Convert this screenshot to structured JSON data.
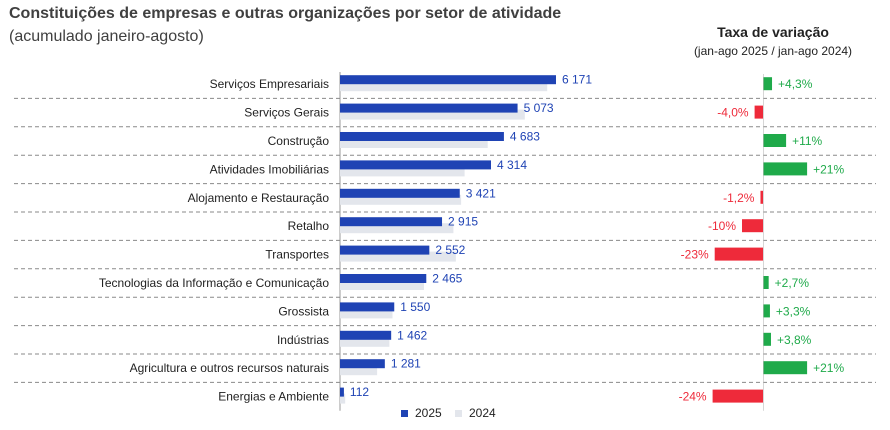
{
  "header": {
    "title": "Constituições de empresas e outras organizações por setor de atividade",
    "subtitle": "(acumulado janeiro-agosto)",
    "rate_title": "Taxa de variação",
    "rate_subtitle": "(jan-ago 2025 / jan-ago 2024)"
  },
  "colors": {
    "bar_2025": "#1f43b4",
    "bar_2024": "#e3e6ec",
    "positive": "#1faa4a",
    "negative": "#ee2a3a",
    "value_text": "#1f43b4"
  },
  "legend": {
    "items": [
      "2025",
      "2024"
    ]
  },
  "chart_data": [
    {
      "type": "bar",
      "orientation": "horizontal",
      "categories": [
        "Serviços Empresariais",
        "Serviços Gerais",
        "Construção",
        "Atividades Imobiliárias",
        "Alojamento e Restauração",
        "Retalho",
        "Transportes",
        "Tecnologias da Informação e Comunicação",
        "Grossista",
        "Indústrias",
        "Agricultura e outros recursos naturais",
        "Energias e Ambiente"
      ],
      "series": [
        {
          "name": "2025",
          "values": [
            6171,
            5073,
            4683,
            4314,
            3421,
            2915,
            2552,
            2465,
            1550,
            1462,
            1281,
            112
          ],
          "labels": [
            "6 171",
            "5 073",
            "4 683",
            "4 314",
            "3 421",
            "2 915",
            "2 552",
            "2 465",
            "1 550",
            "1 462",
            "1 281",
            "112"
          ]
        },
        {
          "name": "2024",
          "values": [
            5920,
            5280,
            4220,
            3560,
            3460,
            3240,
            3310,
            2400,
            1500,
            1410,
            1060,
            148
          ]
        }
      ],
      "xlim": [
        0,
        7000
      ],
      "legend_position": "bottom"
    },
    {
      "type": "bar",
      "orientation": "horizontal",
      "categories": [
        "Serviços Empresariais",
        "Serviços Gerais",
        "Construção",
        "Atividades Imobiliárias",
        "Alojamento e Restauração",
        "Retalho",
        "Transportes",
        "Tecnologias da Informação e Comunicação",
        "Grossista",
        "Indústrias",
        "Agricultura e outros recursos naturais",
        "Energias e Ambiente"
      ],
      "values": [
        4.3,
        -4.0,
        11,
        21,
        -1.2,
        -10,
        -23,
        2.7,
        3.3,
        3.8,
        21,
        -24
      ],
      "labels": [
        "+4,3%",
        "-4,0%",
        "+11%",
        "+21%",
        "-1,2%",
        "-10%",
        "-23%",
        "+2,7%",
        "+3,3%",
        "+3,8%",
        "+21%",
        "-24%"
      ]
    }
  ]
}
